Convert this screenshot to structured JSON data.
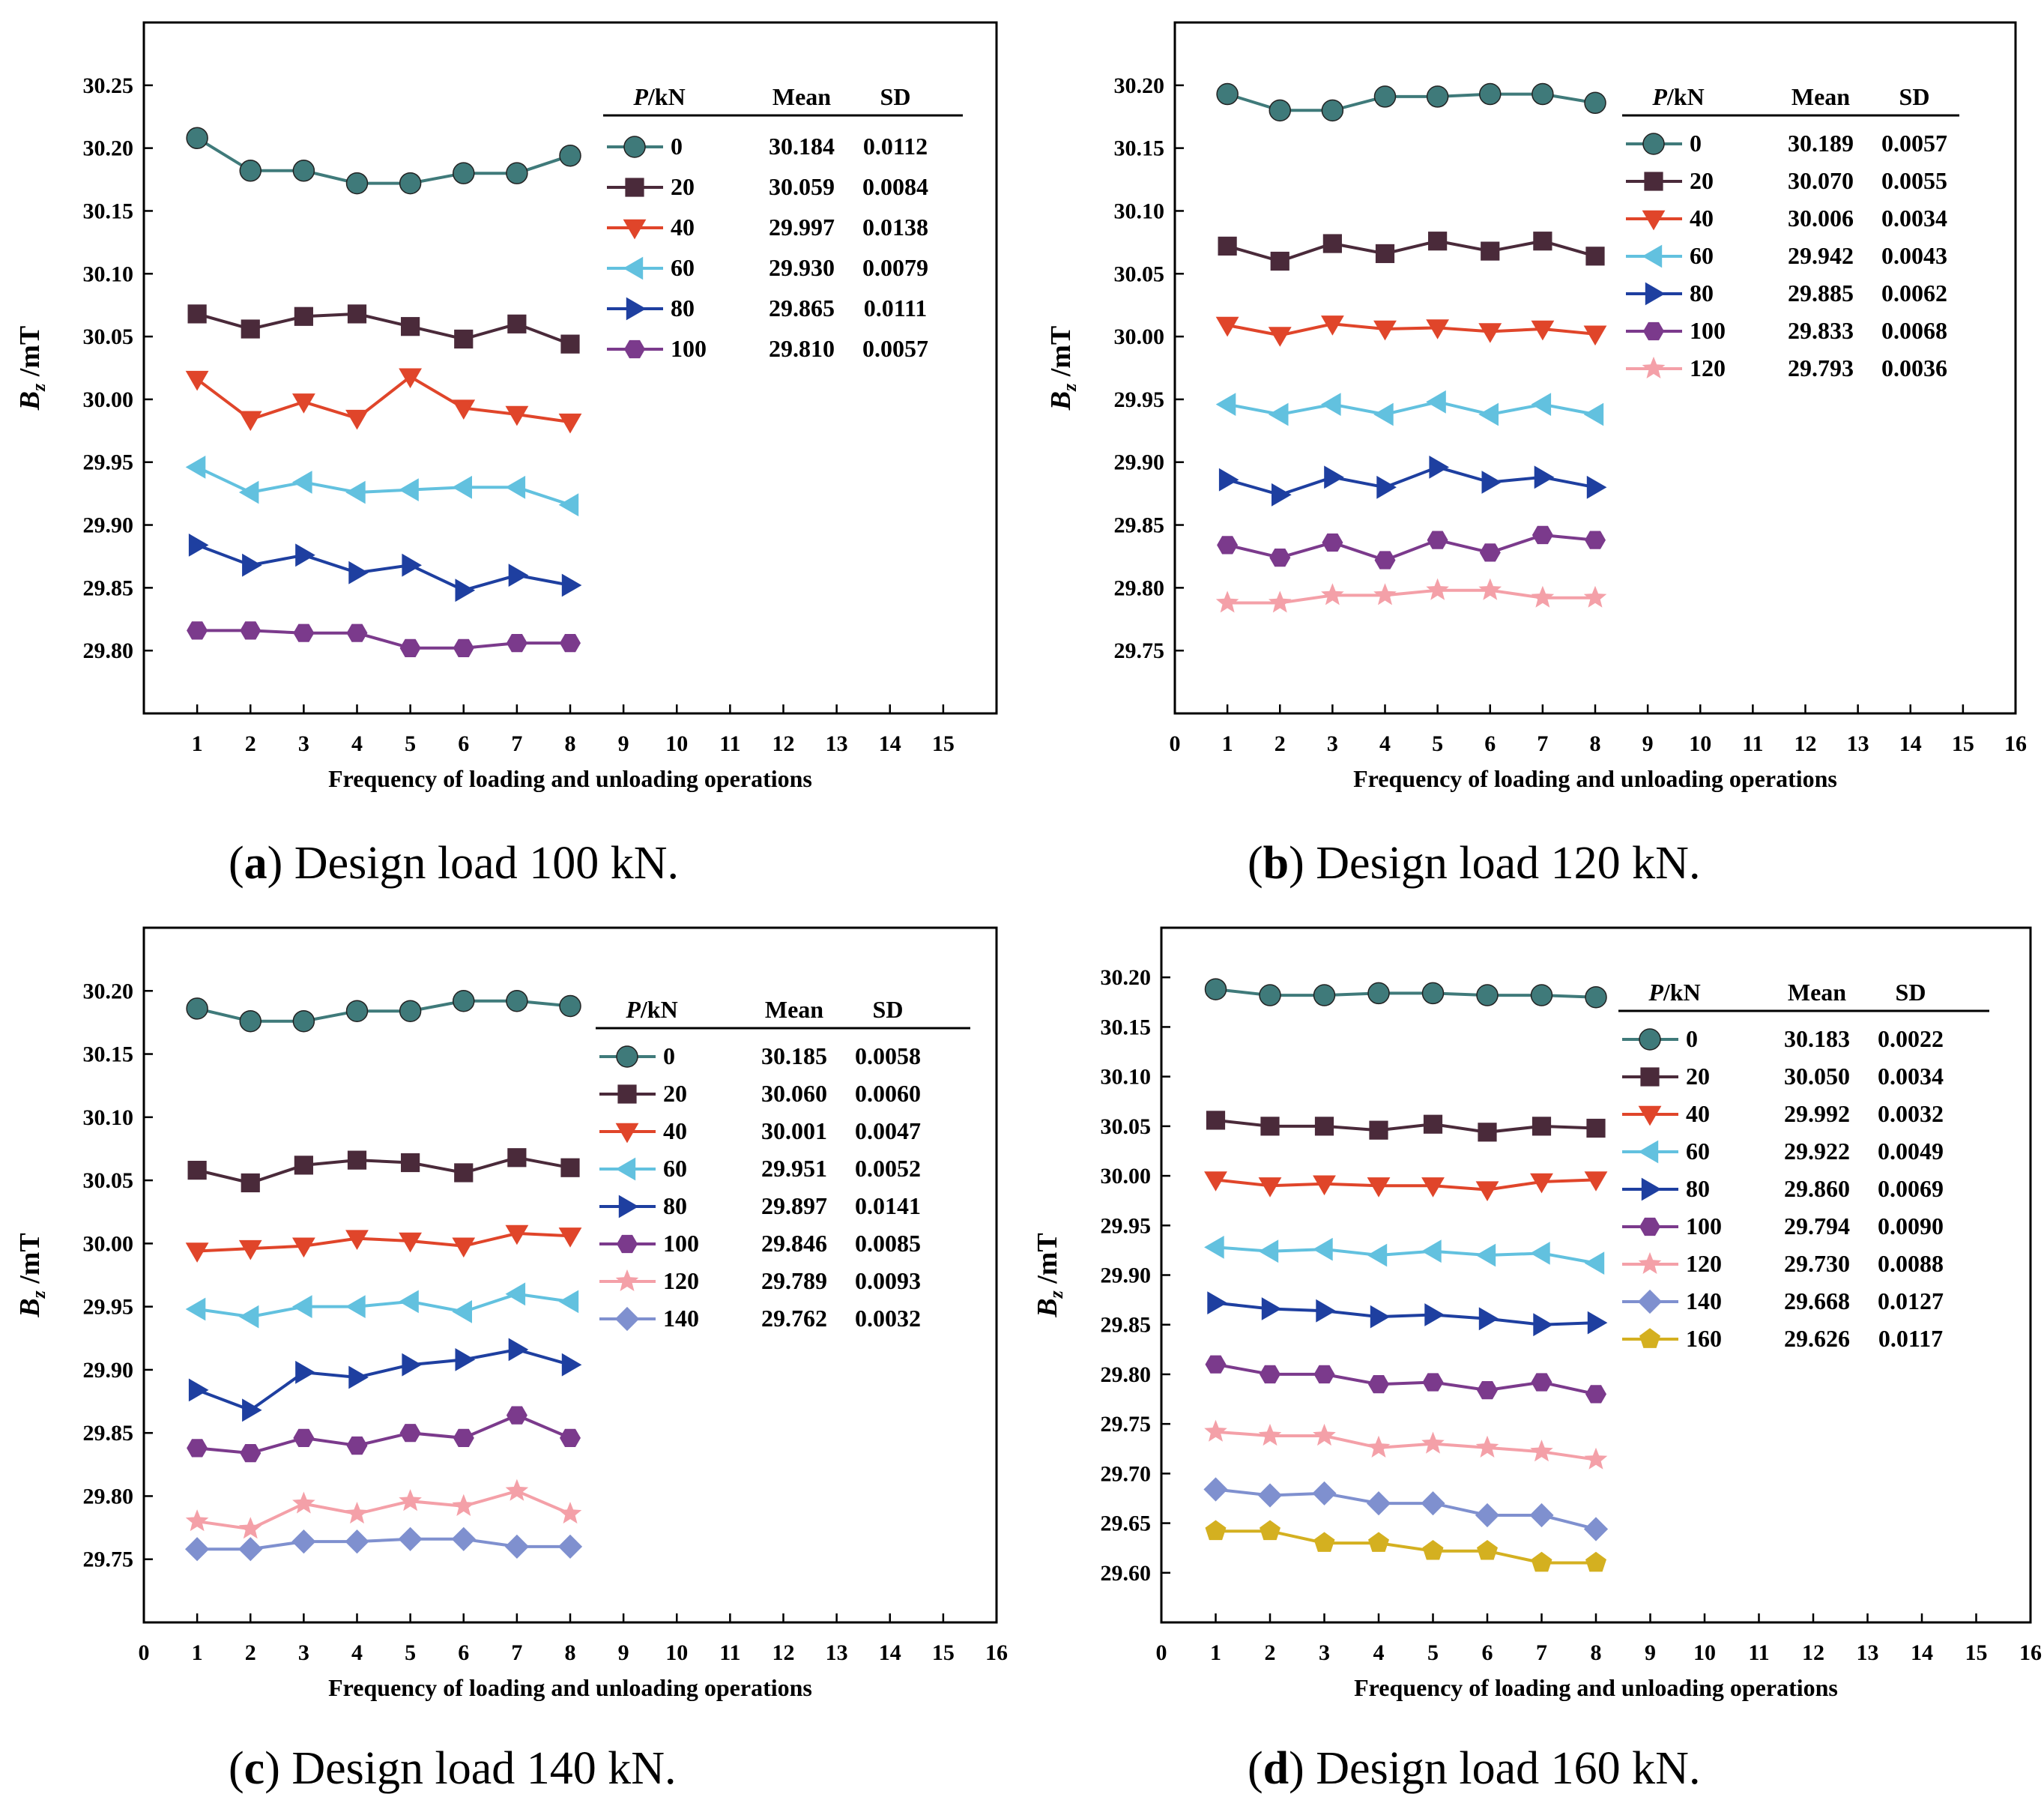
{
  "chart_data": [
    {
      "type": "line",
      "caption": {
        "letter": "a",
        "text": ") Design load 100 kN.",
        "open": "("
      },
      "xlabel": "Frequency of loading and unloading operations",
      "ylabel_main": "B",
      "ylabel_sub": "z",
      "ylabel_unit": " /mT",
      "xlim": [
        0,
        16
      ],
      "ylim": [
        29.75,
        30.3
      ],
      "yticks": [
        "29.80",
        "29.85",
        "29.90",
        "29.95",
        "30.00",
        "30.05",
        "30.10",
        "30.15",
        "30.20",
        "30.25"
      ],
      "xticks": [
        "1",
        "2",
        "3",
        "4",
        "5",
        "6",
        "7",
        "8",
        "9",
        "10",
        "11",
        "12",
        "13",
        "14",
        "15"
      ],
      "legend_headers": {
        "p_italic": "P",
        "p_rest": "/kN",
        "mean": "Mean",
        "sd": "SD"
      },
      "x": [
        1,
        2,
        3,
        4,
        5,
        6,
        7,
        8
      ],
      "series": [
        {
          "name": "0",
          "mean": "30.184",
          "sd": "0.0112",
          "marker": "circle",
          "color": "#3F7A7A",
          "values": [
            30.208,
            30.182,
            30.182,
            30.172,
            30.172,
            30.18,
            30.18,
            30.194
          ]
        },
        {
          "name": "20",
          "mean": "30.059",
          "sd": "0.0084",
          "marker": "square",
          "color": "#4A2A3A",
          "values": [
            30.068,
            30.056,
            30.066,
            30.068,
            30.058,
            30.048,
            30.06,
            30.044
          ]
        },
        {
          "name": "40",
          "mean": "29.997",
          "sd": "0.0138",
          "marker": "triangle-down",
          "color": "#E0452A",
          "values": [
            30.016,
            29.984,
            29.998,
            29.985,
            30.018,
            29.993,
            29.988,
            29.982
          ]
        },
        {
          "name": "60",
          "mean": "29.930",
          "sd": "0.0079",
          "marker": "triangle-left",
          "color": "#62C1DF",
          "values": [
            29.946,
            29.926,
            29.934,
            29.926,
            29.928,
            29.93,
            29.93,
            29.916
          ]
        },
        {
          "name": "80",
          "mean": "29.865",
          "sd": "0.0111",
          "marker": "triangle-right",
          "color": "#1E3FA0",
          "values": [
            29.884,
            29.868,
            29.876,
            29.862,
            29.868,
            29.848,
            29.86,
            29.852
          ]
        },
        {
          "name": "100",
          "mean": "29.810",
          "sd": "0.0057",
          "marker": "hexagon",
          "color": "#7B3A8C",
          "values": [
            29.816,
            29.816,
            29.814,
            29.814,
            29.802,
            29.802,
            29.806,
            29.806
          ]
        }
      ]
    },
    {
      "type": "line",
      "caption": {
        "letter": "b",
        "text": ") Design load 120 kN.",
        "open": "("
      },
      "xlabel": "Frequency of loading and unloading operations",
      "ylabel_main": "B",
      "ylabel_sub": "z",
      "ylabel_unit": " /mT",
      "xlim": [
        0,
        16
      ],
      "ylim": [
        29.7,
        30.25
      ],
      "yticks": [
        "29.75",
        "29.80",
        "29.85",
        "29.90",
        "29.95",
        "30.00",
        "30.05",
        "30.10",
        "30.15",
        "30.20"
      ],
      "xticks": [
        "0",
        "1",
        "2",
        "3",
        "4",
        "5",
        "6",
        "7",
        "8",
        "9",
        "10",
        "11",
        "12",
        "13",
        "14",
        "15",
        "16"
      ],
      "legend_headers": {
        "p_italic": "P",
        "p_rest": "/kN",
        "mean": "Mean",
        "sd": "SD"
      },
      "x": [
        1,
        2,
        3,
        4,
        5,
        6,
        7,
        8
      ],
      "series": [
        {
          "name": "0",
          "mean": "30.189",
          "sd": "0.0057",
          "marker": "circle",
          "color": "#3F7A7A",
          "values": [
            30.193,
            30.18,
            30.18,
            30.191,
            30.191,
            30.193,
            30.193,
            30.186
          ]
        },
        {
          "name": "20",
          "mean": "30.070",
          "sd": "0.0055",
          "marker": "square",
          "color": "#4A2A3A",
          "values": [
            30.072,
            30.06,
            30.074,
            30.066,
            30.076,
            30.068,
            30.076,
            30.064
          ]
        },
        {
          "name": "40",
          "mean": "30.006",
          "sd": "0.0034",
          "marker": "triangle-down",
          "color": "#E0452A",
          "values": [
            30.009,
            30.001,
            30.01,
            30.006,
            30.007,
            30.004,
            30.006,
            30.002
          ]
        },
        {
          "name": "60",
          "mean": "29.942",
          "sd": "0.0043",
          "marker": "triangle-left",
          "color": "#62C1DF",
          "values": [
            29.946,
            29.938,
            29.946,
            29.938,
            29.948,
            29.938,
            29.946,
            29.938
          ]
        },
        {
          "name": "80",
          "mean": "29.885",
          "sd": "0.0062",
          "marker": "triangle-right",
          "color": "#1E3FA0",
          "values": [
            29.886,
            29.874,
            29.888,
            29.88,
            29.896,
            29.884,
            29.888,
            29.88
          ]
        },
        {
          "name": "100",
          "mean": "29.833",
          "sd": "0.0068",
          "marker": "hexagon",
          "color": "#7B3A8C",
          "values": [
            29.834,
            29.824,
            29.836,
            29.822,
            29.838,
            29.828,
            29.842,
            29.838
          ]
        },
        {
          "name": "120",
          "mean": "29.793",
          "sd": "0.0036",
          "marker": "star",
          "color": "#F4A0A8",
          "values": [
            29.788,
            29.788,
            29.794,
            29.794,
            29.798,
            29.798,
            29.792,
            29.792
          ]
        }
      ]
    },
    {
      "type": "line",
      "caption": {
        "letter": "c",
        "text": ") Design load 140 kN.",
        "open": "("
      },
      "xlabel": "Frequency of loading and unloading operations",
      "ylabel_main": "B",
      "ylabel_sub": "z",
      "ylabel_unit": " /mT",
      "xlim": [
        0,
        16
      ],
      "ylim": [
        29.7,
        30.25
      ],
      "yticks": [
        "29.75",
        "29.80",
        "29.85",
        "29.90",
        "29.95",
        "30.00",
        "30.05",
        "30.10",
        "30.15",
        "30.20"
      ],
      "xticks": [
        "0",
        "1",
        "2",
        "3",
        "4",
        "5",
        "6",
        "7",
        "8",
        "9",
        "10",
        "11",
        "12",
        "13",
        "14",
        "15",
        "16"
      ],
      "legend_headers": {
        "p_italic": "P",
        "p_rest": "/kN",
        "mean": "Mean",
        "sd": "SD"
      },
      "x": [
        1,
        2,
        3,
        4,
        5,
        6,
        7,
        8
      ],
      "series": [
        {
          "name": "0",
          "mean": "30.185",
          "sd": "0.0058",
          "marker": "circle",
          "color": "#3F7A7A",
          "values": [
            30.186,
            30.176,
            30.176,
            30.184,
            30.184,
            30.192,
            30.192,
            30.188
          ]
        },
        {
          "name": "20",
          "mean": "30.060",
          "sd": "0.0060",
          "marker": "square",
          "color": "#4A2A3A",
          "values": [
            30.058,
            30.048,
            30.062,
            30.066,
            30.064,
            30.056,
            30.068,
            30.06
          ]
        },
        {
          "name": "40",
          "mean": "30.001",
          "sd": "0.0047",
          "marker": "triangle-down",
          "color": "#E0452A",
          "values": [
            29.994,
            29.996,
            29.998,
            30.004,
            30.002,
            29.998,
            30.008,
            30.006
          ]
        },
        {
          "name": "60",
          "mean": "29.951",
          "sd": "0.0052",
          "marker": "triangle-left",
          "color": "#62C1DF",
          "values": [
            29.948,
            29.942,
            29.95,
            29.95,
            29.954,
            29.946,
            29.96,
            29.954
          ]
        },
        {
          "name": "80",
          "mean": "29.897",
          "sd": "0.0141",
          "marker": "triangle-right",
          "color": "#1E3FA0",
          "values": [
            29.884,
            29.868,
            29.898,
            29.894,
            29.904,
            29.908,
            29.916,
            29.904
          ]
        },
        {
          "name": "100",
          "mean": "29.846",
          "sd": "0.0085",
          "marker": "hexagon",
          "color": "#7B3A8C",
          "values": [
            29.838,
            29.834,
            29.846,
            29.84,
            29.85,
            29.846,
            29.864,
            29.846
          ]
        },
        {
          "name": "120",
          "mean": "29.789",
          "sd": "0.0093",
          "marker": "star",
          "color": "#F4A0A8",
          "values": [
            29.78,
            29.774,
            29.794,
            29.786,
            29.796,
            29.792,
            29.804,
            29.786
          ]
        },
        {
          "name": "140",
          "mean": "29.762",
          "sd": "0.0032",
          "marker": "diamond",
          "color": "#7F90CF",
          "values": [
            29.758,
            29.758,
            29.764,
            29.764,
            29.766,
            29.766,
            29.76,
            29.76
          ]
        }
      ]
    },
    {
      "type": "line",
      "caption": {
        "letter": "d",
        "text": ") Design load 160 kN.",
        "open": "("
      },
      "xlabel": "Frequency of loading and unloading operations",
      "ylabel_main": "B",
      "ylabel_sub": "z",
      "ylabel_unit": " /mT",
      "xlim": [
        0,
        16
      ],
      "ylim": [
        29.55,
        30.25
      ],
      "yticks": [
        "29.60",
        "29.65",
        "29.70",
        "29.75",
        "29.80",
        "29.85",
        "29.90",
        "29.95",
        "30.00",
        "30.05",
        "30.10",
        "30.15",
        "30.20"
      ],
      "xticks": [
        "0",
        "1",
        "2",
        "3",
        "4",
        "5",
        "6",
        "7",
        "8",
        "9",
        "10",
        "11",
        "12",
        "13",
        "14",
        "15",
        "16"
      ],
      "legend_headers": {
        "p_italic": "P",
        "p_rest": "/kN",
        "mean": "Mean",
        "sd": "SD"
      },
      "x": [
        1,
        2,
        3,
        4,
        5,
        6,
        7,
        8
      ],
      "series": [
        {
          "name": "0",
          "mean": "30.183",
          "sd": "0.0022",
          "marker": "circle",
          "color": "#3F7A7A",
          "values": [
            30.188,
            30.182,
            30.182,
            30.184,
            30.184,
            30.182,
            30.182,
            30.18
          ]
        },
        {
          "name": "20",
          "mean": "30.050",
          "sd": "0.0034",
          "marker": "square",
          "color": "#4A2A3A",
          "values": [
            30.056,
            30.05,
            30.05,
            30.046,
            30.052,
            30.044,
            30.05,
            30.048
          ]
        },
        {
          "name": "40",
          "mean": "29.992",
          "sd": "0.0032",
          "marker": "triangle-down",
          "color": "#E0452A",
          "values": [
            29.996,
            29.99,
            29.992,
            29.99,
            29.99,
            29.986,
            29.994,
            29.996
          ]
        },
        {
          "name": "60",
          "mean": "29.922",
          "sd": "0.0049",
          "marker": "triangle-left",
          "color": "#62C1DF",
          "values": [
            29.928,
            29.924,
            29.926,
            29.92,
            29.924,
            29.92,
            29.922,
            29.912
          ]
        },
        {
          "name": "80",
          "mean": "29.860",
          "sd": "0.0069",
          "marker": "triangle-right",
          "color": "#1E3FA0",
          "values": [
            29.872,
            29.866,
            29.864,
            29.858,
            29.86,
            29.856,
            29.85,
            29.852
          ]
        },
        {
          "name": "100",
          "mean": "29.794",
          "sd": "0.0090",
          "marker": "hexagon",
          "color": "#7B3A8C",
          "values": [
            29.81,
            29.8,
            29.8,
            29.79,
            29.792,
            29.784,
            29.792,
            29.78
          ]
        },
        {
          "name": "120",
          "mean": "29.730",
          "sd": "0.0088",
          "marker": "star",
          "color": "#F4A0A8",
          "values": [
            29.742,
            29.738,
            29.738,
            29.726,
            29.73,
            29.726,
            29.722,
            29.714
          ]
        },
        {
          "name": "140",
          "mean": "29.668",
          "sd": "0.0127",
          "marker": "diamond",
          "color": "#7F90CF",
          "values": [
            29.684,
            29.678,
            29.68,
            29.67,
            29.67,
            29.658,
            29.658,
            29.644
          ]
        },
        {
          "name": "160",
          "mean": "29.626",
          "sd": "0.0117",
          "marker": "pentagon",
          "color": "#D4B020",
          "values": [
            29.642,
            29.642,
            29.63,
            29.63,
            29.622,
            29.622,
            29.61,
            29.61
          ]
        }
      ]
    }
  ]
}
